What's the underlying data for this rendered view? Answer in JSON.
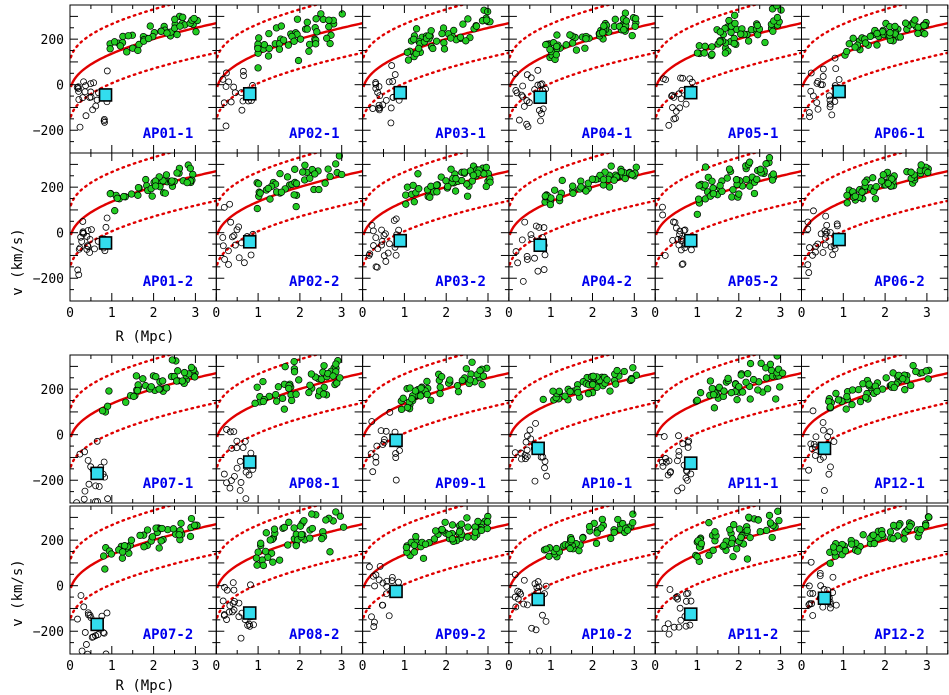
{
  "figure": {
    "xlabel": "R (Mpc)",
    "ylabel": "v (km/s)"
  },
  "colors": {
    "model": "#e00000",
    "member_fill": "#22cc22",
    "nonmember_stroke": "#000000",
    "center_fill": "#33ddee",
    "label": "#0000ee"
  },
  "chart_data": {
    "type": "scatter",
    "layout": "4 rows x 6 columns of panels, in two blocks of two rows; axes shared within each block",
    "xlim": [
      0,
      3.5
    ],
    "ylim": [
      -300,
      350
    ],
    "xticks": [
      0,
      1,
      2,
      3
    ],
    "yticks": [
      -200,
      0,
      200
    ],
    "model_curve": {
      "solid": "v ≈ 310·(R/3.5)^0.45 − 40 (approx.)",
      "dotted_offsets": [
        -130,
        130
      ]
    },
    "panels": [
      {
        "label": "AP01-1",
        "center": [
          0.85,
          -45
        ]
      },
      {
        "label": "AP02-1",
        "center": [
          0.8,
          -40
        ]
      },
      {
        "label": "AP03-1",
        "center": [
          0.9,
          -35
        ]
      },
      {
        "label": "AP04-1",
        "center": [
          0.75,
          -55
        ]
      },
      {
        "label": "AP05-1",
        "center": [
          0.85,
          -35
        ]
      },
      {
        "label": "AP06-1",
        "center": [
          0.9,
          -30
        ]
      },
      {
        "label": "AP01-2",
        "center": [
          0.85,
          -45
        ]
      },
      {
        "label": "AP02-2",
        "center": [
          0.8,
          -40
        ]
      },
      {
        "label": "AP03-2",
        "center": [
          0.9,
          -35
        ]
      },
      {
        "label": "AP04-2",
        "center": [
          0.75,
          -55
        ]
      },
      {
        "label": "AP05-2",
        "center": [
          0.85,
          -35
        ]
      },
      {
        "label": "AP06-2",
        "center": [
          0.9,
          -30
        ]
      },
      {
        "label": "AP07-1",
        "center": [
          0.65,
          -170
        ]
      },
      {
        "label": "AP08-1",
        "center": [
          0.8,
          -120
        ]
      },
      {
        "label": "AP09-1",
        "center": [
          0.8,
          -25
        ]
      },
      {
        "label": "AP10-1",
        "center": [
          0.7,
          -60
        ]
      },
      {
        "label": "AP11-1",
        "center": [
          0.85,
          -125
        ]
      },
      {
        "label": "AP12-1",
        "center": [
          0.55,
          -60
        ]
      },
      {
        "label": "AP07-2",
        "center": [
          0.65,
          -170
        ]
      },
      {
        "label": "AP08-2",
        "center": [
          0.8,
          -120
        ]
      },
      {
        "label": "AP09-2",
        "center": [
          0.8,
          -25
        ]
      },
      {
        "label": "AP10-2",
        "center": [
          0.7,
          -60
        ]
      },
      {
        "label": "AP11-2",
        "center": [
          0.85,
          -125
        ]
      },
      {
        "label": "AP12-2",
        "center": [
          0.55,
          -55
        ]
      }
    ]
  }
}
